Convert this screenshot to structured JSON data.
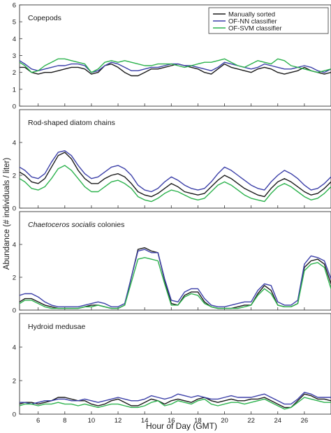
{
  "figure": {
    "ylabel": "Abundance (# individuals / liter)",
    "xlabel": "Hour of Day (GMT)"
  },
  "legend": {
    "placement": "top-right of first panel",
    "entries": [
      {
        "name": "Manually sorted",
        "color": "#1a1a1a"
      },
      {
        "name": "OF-NN classifier",
        "color": "#3b3fa8"
      },
      {
        "name": "OF-SVM classifier",
        "color": "#2bb24c"
      }
    ]
  },
  "chart_data": [
    {
      "type": "line",
      "title": "Copepods",
      "title_italic": false,
      "xlim": [
        4.6,
        28
      ],
      "ylim": [
        0,
        6
      ],
      "yticks": [
        0,
        1,
        2,
        3,
        4,
        5,
        6
      ],
      "xticks": [
        6,
        8,
        10,
        12,
        14,
        16,
        18,
        20,
        22,
        24,
        26
      ],
      "x": [
        4.6,
        5.0,
        5.5,
        6.0,
        6.5,
        7.0,
        7.5,
        8.0,
        8.5,
        9.0,
        9.5,
        10.0,
        10.5,
        11.0,
        11.5,
        12.0,
        12.5,
        13.0,
        13.5,
        14.0,
        14.5,
        15.0,
        15.5,
        16.0,
        16.5,
        17.0,
        17.5,
        18.0,
        18.5,
        19.0,
        19.5,
        20.0,
        20.5,
        21.0,
        21.5,
        22.0,
        22.5,
        23.0,
        23.5,
        24.0,
        24.5,
        25.0,
        25.5,
        26.0,
        26.5,
        27.0,
        27.5,
        28.0
      ],
      "series": [
        {
          "name": "Manually sorted",
          "color": "#1a1a1a",
          "values": [
            2.3,
            2.3,
            2.0,
            1.9,
            2.0,
            2.0,
            2.1,
            2.2,
            2.3,
            2.3,
            2.2,
            1.9,
            2.0,
            2.4,
            2.5,
            2.3,
            2.0,
            1.8,
            1.8,
            2.0,
            2.2,
            2.2,
            2.3,
            2.4,
            2.5,
            2.4,
            2.3,
            2.2,
            2.0,
            1.9,
            2.2,
            2.5,
            2.3,
            2.2,
            2.1,
            2.0,
            2.2,
            2.3,
            2.2,
            2.0,
            1.9,
            2.0,
            2.1,
            2.3,
            2.1,
            2.0,
            1.9,
            2.0
          ]
        },
        {
          "name": "OF-NN classifier",
          "color": "#3b3fa8",
          "values": [
            2.7,
            2.5,
            2.2,
            2.1,
            2.2,
            2.3,
            2.4,
            2.4,
            2.5,
            2.5,
            2.4,
            2.0,
            2.1,
            2.4,
            2.6,
            2.5,
            2.3,
            2.1,
            2.1,
            2.2,
            2.3,
            2.3,
            2.4,
            2.5,
            2.5,
            2.4,
            2.4,
            2.3,
            2.2,
            2.1,
            2.3,
            2.6,
            2.5,
            2.4,
            2.3,
            2.2,
            2.3,
            2.5,
            2.4,
            2.3,
            2.2,
            2.2,
            2.3,
            2.4,
            2.3,
            2.1,
            2.0,
            2.2
          ]
        },
        {
          "name": "OF-SVM classifier",
          "color": "#2bb24c",
          "values": [
            2.6,
            2.4,
            2.0,
            2.1,
            2.4,
            2.6,
            2.8,
            2.8,
            2.7,
            2.6,
            2.5,
            2.0,
            2.2,
            2.6,
            2.7,
            2.6,
            2.7,
            2.6,
            2.5,
            2.4,
            2.4,
            2.5,
            2.5,
            2.5,
            2.4,
            2.3,
            2.4,
            2.5,
            2.6,
            2.6,
            2.7,
            2.8,
            2.6,
            2.4,
            2.3,
            2.5,
            2.7,
            2.6,
            2.5,
            2.8,
            2.7,
            2.4,
            2.3,
            2.2,
            2.1,
            2.0,
            2.1,
            2.2
          ]
        }
      ]
    },
    {
      "type": "line",
      "title": "Rod-shaped diatom chains",
      "title_italic": false,
      "xlim": [
        4.6,
        28
      ],
      "ylim": [
        0,
        6
      ],
      "yticks": [
        0,
        2,
        4
      ],
      "xticks": [
        6,
        8,
        10,
        12,
        14,
        16,
        18,
        20,
        22,
        24,
        26
      ],
      "x": [
        4.6,
        5.0,
        5.5,
        6.0,
        6.5,
        7.0,
        7.5,
        8.0,
        8.5,
        9.0,
        9.5,
        10.0,
        10.5,
        11.0,
        11.5,
        12.0,
        12.5,
        13.0,
        13.5,
        14.0,
        14.5,
        15.0,
        15.5,
        16.0,
        16.5,
        17.0,
        17.5,
        18.0,
        18.5,
        19.0,
        19.5,
        20.0,
        20.5,
        21.0,
        21.5,
        22.0,
        22.5,
        23.0,
        23.5,
        24.0,
        24.5,
        25.0,
        25.5,
        26.0,
        26.5,
        27.0,
        27.5,
        28.0
      ],
      "series": [
        {
          "name": "Manually sorted",
          "color": "#1a1a1a",
          "values": [
            2.2,
            2.0,
            1.6,
            1.5,
            1.8,
            2.5,
            3.2,
            3.4,
            3.0,
            2.3,
            1.8,
            1.5,
            1.5,
            1.8,
            2.0,
            2.1,
            1.9,
            1.5,
            1.0,
            0.8,
            0.7,
            0.9,
            1.2,
            1.5,
            1.3,
            1.0,
            0.9,
            0.8,
            0.9,
            1.3,
            1.7,
            2.0,
            1.8,
            1.5,
            1.2,
            1.0,
            0.8,
            0.7,
            1.2,
            1.6,
            1.8,
            1.6,
            1.3,
            1.0,
            0.8,
            0.9,
            1.2,
            1.6
          ]
        },
        {
          "name": "OF-NN classifier",
          "color": "#3b3fa8",
          "values": [
            2.5,
            2.3,
            1.9,
            1.8,
            2.1,
            2.8,
            3.4,
            3.5,
            3.2,
            2.6,
            2.1,
            1.8,
            1.9,
            2.2,
            2.5,
            2.6,
            2.4,
            2.0,
            1.4,
            1.1,
            1.0,
            1.2,
            1.6,
            1.9,
            1.7,
            1.4,
            1.2,
            1.1,
            1.2,
            1.6,
            2.1,
            2.5,
            2.3,
            2.0,
            1.7,
            1.4,
            1.2,
            1.1,
            1.6,
            2.0,
            2.3,
            2.1,
            1.8,
            1.4,
            1.1,
            1.2,
            1.5,
            1.9
          ]
        },
        {
          "name": "OF-SVM classifier",
          "color": "#2bb24c",
          "values": [
            1.8,
            1.6,
            1.2,
            1.1,
            1.3,
            1.8,
            2.4,
            2.6,
            2.3,
            1.8,
            1.3,
            1.0,
            1.0,
            1.3,
            1.6,
            1.7,
            1.5,
            1.2,
            0.7,
            0.5,
            0.4,
            0.6,
            0.9,
            1.1,
            1.0,
            0.8,
            0.6,
            0.5,
            0.6,
            1.0,
            1.4,
            1.6,
            1.4,
            1.1,
            0.8,
            0.6,
            0.5,
            0.4,
            0.9,
            1.3,
            1.5,
            1.3,
            1.0,
            0.7,
            0.5,
            0.6,
            0.9,
            1.3
          ]
        }
      ]
    },
    {
      "type": "line",
      "title": "Chaetoceros socialis colonies",
      "title_italic_part": "Chaetoceros socialis",
      "title_roman_part": " colonies",
      "title_italic": true,
      "xlim": [
        4.6,
        28
      ],
      "ylim": [
        0,
        6
      ],
      "yticks": [
        0,
        2,
        4
      ],
      "xticks": [
        6,
        8,
        10,
        12,
        14,
        16,
        18,
        20,
        22,
        24,
        26
      ],
      "x": [
        4.6,
        5.0,
        5.5,
        6.0,
        6.5,
        7.0,
        7.5,
        8.0,
        8.5,
        9.0,
        9.5,
        10.0,
        10.5,
        11.0,
        11.5,
        12.0,
        12.5,
        13.0,
        13.5,
        14.0,
        14.5,
        15.0,
        15.5,
        16.0,
        16.5,
        17.0,
        17.5,
        18.0,
        18.5,
        19.0,
        19.5,
        20.0,
        20.5,
        21.0,
        21.5,
        22.0,
        22.5,
        23.0,
        23.5,
        24.0,
        24.5,
        25.0,
        25.5,
        26.0,
        26.5,
        27.0,
        27.5,
        28.0
      ],
      "series": [
        {
          "name": "Manually sorted",
          "color": "#1a1a1a",
          "values": [
            0.5,
            0.7,
            0.7,
            0.5,
            0.3,
            0.2,
            0.1,
            0.1,
            0.1,
            0.1,
            0.2,
            0.3,
            0.3,
            0.2,
            0.1,
            0.1,
            0.3,
            2.0,
            3.7,
            3.8,
            3.6,
            3.5,
            1.8,
            0.4,
            0.3,
            0.9,
            1.1,
            1.1,
            0.5,
            0.2,
            0.1,
            0.1,
            0.1,
            0.2,
            0.3,
            0.3,
            1.0,
            1.5,
            1.2,
            0.3,
            0.2,
            0.2,
            0.4,
            2.6,
            3.0,
            3.1,
            2.8,
            1.6
          ]
        },
        {
          "name": "OF-NN classifier",
          "color": "#3b3fa8",
          "values": [
            0.9,
            1.0,
            1.0,
            0.8,
            0.5,
            0.3,
            0.2,
            0.2,
            0.2,
            0.2,
            0.3,
            0.4,
            0.5,
            0.4,
            0.2,
            0.2,
            0.4,
            2.0,
            3.6,
            3.7,
            3.5,
            3.5,
            1.9,
            0.6,
            0.5,
            1.1,
            1.3,
            1.3,
            0.7,
            0.3,
            0.2,
            0.2,
            0.3,
            0.4,
            0.5,
            0.5,
            1.2,
            1.6,
            1.5,
            0.5,
            0.3,
            0.3,
            0.6,
            2.8,
            3.3,
            3.2,
            3.0,
            1.9
          ]
        },
        {
          "name": "OF-SVM classifier",
          "color": "#2bb24c",
          "values": [
            0.4,
            0.6,
            0.6,
            0.4,
            0.2,
            0.1,
            0.1,
            0.1,
            0.1,
            0.1,
            0.2,
            0.2,
            0.3,
            0.2,
            0.1,
            0.1,
            0.3,
            1.7,
            3.1,
            3.2,
            3.1,
            3.0,
            1.6,
            0.3,
            0.3,
            0.8,
            1.0,
            0.9,
            0.4,
            0.2,
            0.1,
            0.1,
            0.1,
            0.1,
            0.2,
            0.3,
            0.9,
            1.3,
            1.0,
            0.3,
            0.2,
            0.2,
            0.4,
            2.4,
            2.8,
            2.9,
            2.6,
            1.3
          ]
        }
      ]
    },
    {
      "type": "line",
      "title": "Hydroid medusae",
      "title_italic": false,
      "xlim": [
        4.6,
        28
      ],
      "ylim": [
        0,
        6
      ],
      "yticks": [
        0,
        2,
        4
      ],
      "xticks": [
        6,
        8,
        10,
        12,
        14,
        16,
        18,
        20,
        22,
        24,
        26
      ],
      "x": [
        4.6,
        5.0,
        5.5,
        6.0,
        6.5,
        7.0,
        7.5,
        8.0,
        8.5,
        9.0,
        9.5,
        10.0,
        10.5,
        11.0,
        11.5,
        12.0,
        12.5,
        13.0,
        13.5,
        14.0,
        14.5,
        15.0,
        15.5,
        16.0,
        16.5,
        17.0,
        17.5,
        18.0,
        18.5,
        19.0,
        19.5,
        20.0,
        20.5,
        21.0,
        21.5,
        22.0,
        22.5,
        23.0,
        23.5,
        24.0,
        24.5,
        25.0,
        25.5,
        26.0,
        26.5,
        27.0,
        27.5,
        28.0
      ],
      "series": [
        {
          "name": "Manually sorted",
          "color": "#1a1a1a",
          "values": [
            0.6,
            0.7,
            0.7,
            0.6,
            0.7,
            0.8,
            1.0,
            1.0,
            0.9,
            0.8,
            0.8,
            0.6,
            0.5,
            0.6,
            0.8,
            0.9,
            0.7,
            0.5,
            0.5,
            0.7,
            0.9,
            0.8,
            0.6,
            0.8,
            0.9,
            0.8,
            0.7,
            0.9,
            1.0,
            0.8,
            0.7,
            0.8,
            0.9,
            0.8,
            0.8,
            0.9,
            0.9,
            1.0,
            0.8,
            0.6,
            0.4,
            0.4,
            0.8,
            1.2,
            1.1,
            0.9,
            0.9,
            0.8
          ]
        },
        {
          "name": "OF-NN classifier",
          "color": "#3b3fa8",
          "values": [
            0.7,
            0.7,
            0.6,
            0.7,
            0.8,
            0.8,
            0.9,
            0.9,
            0.8,
            0.8,
            0.9,
            0.8,
            0.7,
            0.8,
            0.9,
            1.0,
            0.9,
            0.8,
            0.8,
            0.9,
            1.1,
            1.0,
            0.9,
            1.0,
            1.2,
            1.1,
            1.0,
            1.1,
            1.0,
            0.9,
            0.9,
            1.0,
            1.1,
            1.0,
            1.0,
            1.0,
            1.1,
            1.2,
            1.0,
            0.8,
            0.6,
            0.6,
            0.9,
            1.3,
            1.2,
            1.0,
            1.0,
            1.0
          ]
        },
        {
          "name": "OF-SVM classifier",
          "color": "#2bb24c",
          "values": [
            0.5,
            0.6,
            0.6,
            0.5,
            0.6,
            0.6,
            0.7,
            0.6,
            0.6,
            0.5,
            0.6,
            0.5,
            0.4,
            0.5,
            0.6,
            0.6,
            0.5,
            0.4,
            0.4,
            0.5,
            0.7,
            0.8,
            0.5,
            0.6,
            0.8,
            0.7,
            0.6,
            0.8,
            0.9,
            0.6,
            0.5,
            0.6,
            0.7,
            0.7,
            0.6,
            0.7,
            0.8,
            0.9,
            0.7,
            0.5,
            0.3,
            0.4,
            0.7,
            1.0,
            0.9,
            0.8,
            0.7,
            0.7
          ]
        }
      ]
    }
  ]
}
